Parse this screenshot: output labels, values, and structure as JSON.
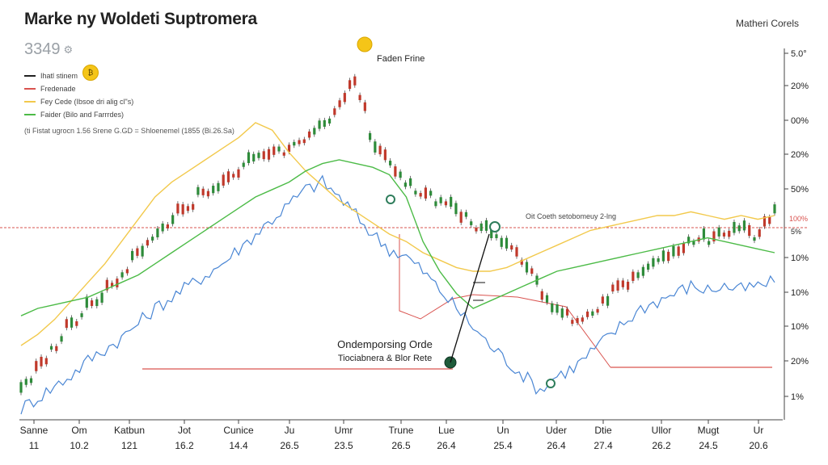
{
  "header": {
    "title": "Marke ny Woldeti Suptromera",
    "corner_label": "Matheri Corels",
    "price": "3349"
  },
  "legend": {
    "items": [
      {
        "label": "Ihatl stinem",
        "color": "#222222"
      },
      {
        "label": "Fredenade",
        "color": "#d9534f"
      },
      {
        "label": "Fey Cede (Ibsoe dri alig cl\"s)",
        "color": "#f2c94c"
      },
      {
        "label": "Faider (Bilo and Farrrdes)",
        "color": "#4cbb47"
      }
    ],
    "note": "(ti Fistat ugrocn 1.56 Srene G.GD = Shloenemel (1855 (Bi.26.Sa)"
  },
  "chart_data": {
    "type": "line",
    "x_tick_labels": [
      {
        "top": "Sanne",
        "bottom": "11"
      },
      {
        "top": "Om",
        "bottom": "10.2"
      },
      {
        "top": "Katbun",
        "bottom": "121"
      },
      {
        "top": "Jot",
        "bottom": "16.2"
      },
      {
        "top": "Cunice",
        "bottom": "14.4"
      },
      {
        "top": "Ju",
        "bottom": "26.5"
      },
      {
        "top": "Umr",
        "bottom": "23.5"
      },
      {
        "top": "Trune",
        "bottom": "26.5"
      },
      {
        "top": "Lue",
        "bottom": "26.4"
      },
      {
        "top": "Un",
        "bottom": "25.4"
      },
      {
        "top": "Uder",
        "bottom": "26.4"
      },
      {
        "top": "Dtie",
        "bottom": "27.4"
      },
      {
        "top": "Ullor",
        "bottom": "26.2"
      },
      {
        "top": "Mugt",
        "bottom": "24.5"
      },
      {
        "top": "Ur",
        "bottom": "20.6"
      }
    ],
    "y_tick_labels": [
      "5.0°",
      "20%",
      "00%",
      "20%",
      "50%",
      "",
      "10%",
      "10%",
      "10%",
      "20%",
      "1%"
    ],
    "right_red_label": "100%",
    "right_small_label": "5%",
    "series": [
      {
        "key": "candles",
        "color": "#222222",
        "values": [
          0.08,
          0.13,
          0.19,
          0.25,
          0.3,
          0.33,
          0.38,
          0.44,
          0.49,
          0.53,
          0.57,
          0.61,
          0.63,
          0.66,
          0.69,
          0.71,
          0.73,
          0.76,
          0.79,
          0.83,
          0.92,
          0.73,
          0.68,
          0.63,
          0.6,
          0.58,
          0.55,
          0.52,
          0.5,
          0.46,
          0.42,
          0.34,
          0.28,
          0.26,
          0.29,
          0.32,
          0.36,
          0.38,
          0.41,
          0.45,
          0.47,
          0.48,
          0.5,
          0.52,
          0.49,
          0.56
        ]
      },
      {
        "key": "blue",
        "color": "#4a86d4",
        "values": [
          0.03,
          0.06,
          0.09,
          0.12,
          0.16,
          0.19,
          0.22,
          0.26,
          0.3,
          0.33,
          0.36,
          0.39,
          0.42,
          0.46,
          0.5,
          0.54,
          0.58,
          0.62,
          0.64,
          0.6,
          0.55,
          0.5,
          0.46,
          0.44,
          0.4,
          0.35,
          0.3,
          0.25,
          0.2,
          0.16,
          0.12,
          0.08,
          0.12,
          0.14,
          0.18,
          0.22,
          0.26,
          0.3,
          0.32,
          0.34,
          0.36,
          0.35,
          0.36,
          0.35,
          0.36,
          0.37
        ]
      },
      {
        "key": "yellow",
        "color": "#f2c94c",
        "values": [
          0.2,
          0.23,
          0.27,
          0.32,
          0.37,
          0.42,
          0.48,
          0.54,
          0.6,
          0.64,
          0.67,
          0.7,
          0.73,
          0.76,
          0.8,
          0.78,
          0.72,
          0.67,
          0.63,
          0.59,
          0.56,
          0.53,
          0.5,
          0.48,
          0.45,
          0.43,
          0.41,
          0.4,
          0.4,
          0.41,
          0.43,
          0.45,
          0.47,
          0.49,
          0.51,
          0.52,
          0.53,
          0.54,
          0.55,
          0.55,
          0.56,
          0.55,
          0.54,
          0.55,
          0.54,
          0.55
        ]
      },
      {
        "key": "green",
        "color": "#4cbb47",
        "values": [
          0.28,
          0.3,
          0.31,
          0.32,
          0.33,
          0.35,
          0.37,
          0.39,
          0.42,
          0.45,
          0.48,
          0.51,
          0.54,
          0.57,
          0.6,
          0.62,
          0.64,
          0.67,
          0.69,
          0.7,
          0.69,
          0.68,
          0.66,
          0.6,
          0.48,
          0.4,
          0.34,
          0.3,
          0.32,
          0.34,
          0.36,
          0.38,
          0.4,
          0.41,
          0.42,
          0.43,
          0.44,
          0.45,
          0.46,
          0.47,
          0.48,
          0.49,
          0.48,
          0.47,
          0.46,
          0.45
        ]
      }
    ]
  },
  "annotations": {
    "peak": "Faden Frine",
    "cross": "Oit Coeth setobomeuy 2-lng",
    "order_line1": "Ondemporsing Orde",
    "order_line2": "Tiociabnera & Blor Rete"
  }
}
